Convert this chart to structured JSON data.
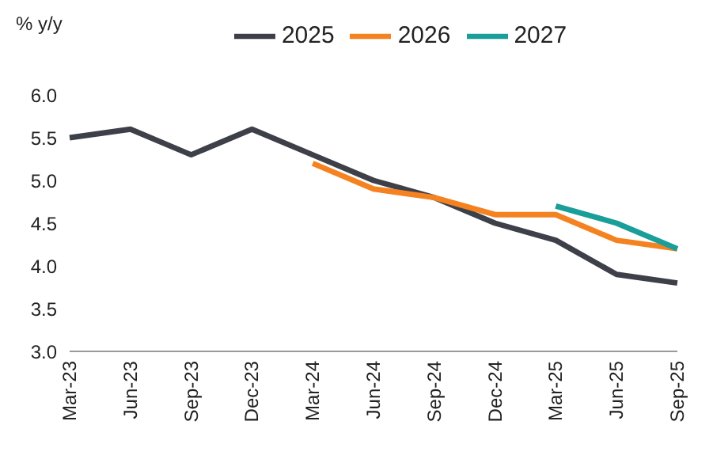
{
  "chart_data": {
    "type": "line",
    "ylabel": "% y/y",
    "categories": [
      "Mar-23",
      "Jun-23",
      "Sep-23",
      "Dec-23",
      "Mar-24",
      "Jun-24",
      "Sep-24",
      "Dec-24",
      "Mar-25",
      "Jun-25",
      "Sep-25"
    ],
    "series": [
      {
        "name": "2025",
        "color": "#3d4049",
        "values": [
          5.5,
          5.6,
          5.3,
          5.6,
          5.3,
          5.0,
          4.8,
          4.5,
          4.3,
          3.9,
          3.8
        ]
      },
      {
        "name": "2026",
        "color": "#f58220",
        "values": [
          null,
          null,
          null,
          null,
          5.2,
          4.9,
          4.8,
          4.6,
          4.6,
          4.3,
          4.2
        ]
      },
      {
        "name": "2027",
        "color": "#1a9e9a",
        "values": [
          null,
          null,
          null,
          null,
          null,
          null,
          null,
          null,
          4.7,
          4.5,
          4.2
        ]
      }
    ],
    "ylim": [
      3.0,
      6.0
    ],
    "yticks": [
      {
        "value": 3,
        "label": "3.0"
      },
      {
        "value": 3.5,
        "label": "3.5"
      },
      {
        "value": 4,
        "label": "4.0"
      },
      {
        "value": 4.5,
        "label": "4.5"
      },
      {
        "value": 5,
        "label": "5.0"
      },
      {
        "value": 5.5,
        "label": "5.5"
      },
      {
        "value": 6,
        "label": "6.0"
      }
    ],
    "grid": false,
    "legend": "top",
    "marker": "none",
    "line_style": "solid"
  }
}
